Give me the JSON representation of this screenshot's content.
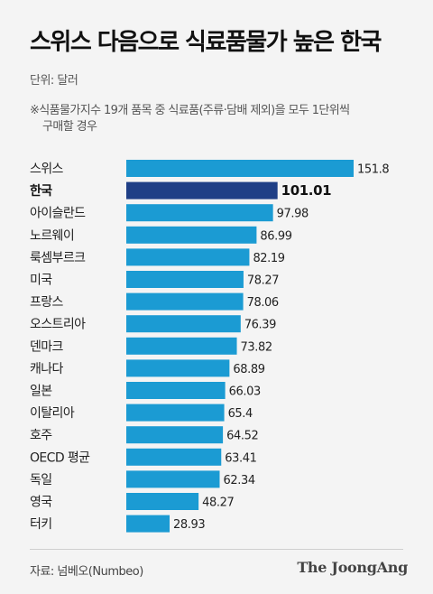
{
  "title": "스위스 다음으로 식료품물가 높은 한국",
  "unit": "단위: 달러",
  "note": {
    "line1": "※식품물가지수 19개 품목 중 식료품(주류·담배 제외)을 모두 1단위씩",
    "line2": "구매할 경우"
  },
  "chart_data": {
    "type": "bar",
    "orientation": "horizontal",
    "categories": [
      "스위스",
      "한국",
      "아이슬란드",
      "노르웨이",
      "룩셈부르크",
      "미국",
      "프랑스",
      "오스트리아",
      "덴마크",
      "캐나다",
      "일본",
      "이탈리아",
      "호주",
      "OECD 평균",
      "독일",
      "영국",
      "터키"
    ],
    "values": [
      151.8,
      101.01,
      97.98,
      86.99,
      82.19,
      78.27,
      78.06,
      76.39,
      73.82,
      68.89,
      66.03,
      65.4,
      64.52,
      63.41,
      62.34,
      48.27,
      28.93
    ],
    "value_labels": [
      "151.8",
      "101.01",
      "97.98",
      "86.99",
      "82.19",
      "78.27",
      "78.06",
      "76.39",
      "73.82",
      "68.89",
      "66.03",
      "65.4",
      "64.52",
      "63.41",
      "62.34",
      "48.27",
      "28.93"
    ],
    "highlight": "한국",
    "colors": {
      "bar": "#1b9bd3",
      "highlight": "#1f3f86"
    },
    "xlim": [
      0,
      151.8
    ]
  },
  "source": "자료: 넘베오(Numbeo)",
  "logo": "The JoongAng"
}
